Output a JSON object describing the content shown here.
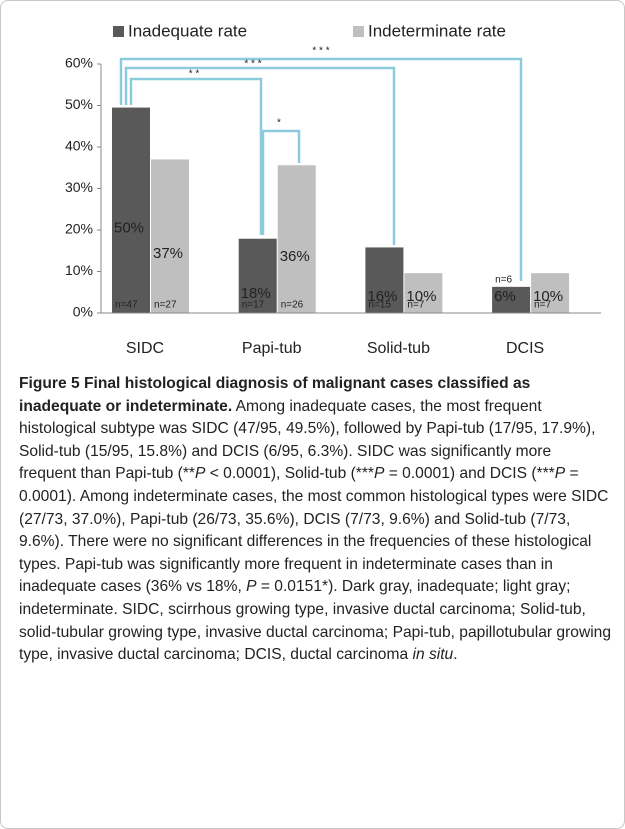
{
  "chart_data": {
    "type": "bar",
    "categories": [
      "SIDC",
      "Papi-tub",
      "Solid-tub",
      "DCIS"
    ],
    "series": [
      {
        "name": "Inadequate rate",
        "color": "#595959",
        "values": [
          49.5,
          17.9,
          15.8,
          6.3
        ],
        "value_labels": [
          "50%",
          "18%",
          "16%",
          "6%"
        ],
        "n_labels": [
          "n=47",
          "n=17",
          "n=15",
          "n=6"
        ]
      },
      {
        "name": "Indeterminate rate",
        "color": "#bfbfbf",
        "values": [
          37.0,
          35.6,
          9.6,
          9.6
        ],
        "value_labels": [
          "37%",
          "36%",
          "10%",
          "10%"
        ],
        "n_labels": [
          "n=27",
          "n=26",
          "n=7",
          "n=7"
        ]
      }
    ],
    "ylim": [
      0,
      60
    ],
    "yticks": [
      {
        "value": 0,
        "label": "0%"
      },
      {
        "value": 10,
        "label": "10%"
      },
      {
        "value": 20,
        "label": "20%"
      },
      {
        "value": 30,
        "label": "30%"
      },
      {
        "value": 40,
        "label": "40%"
      },
      {
        "value": 50,
        "label": "50%"
      },
      {
        "value": 60,
        "label": "60%"
      }
    ],
    "grid": false,
    "legend": "top",
    "annotations": [
      "* * *",
      "* * *",
      "* *",
      "*"
    ]
  },
  "caption": {
    "label": "Figure 5",
    "title": "Final histological diagnosis of malignant cases classified as inadequate or indeterminate.",
    "body": [
      {
        "text": "Among inadequate cases, the most frequent histological subtype was SIDC (47/95, 49.5%), followed by Papi-tub (17/95, 17.9%), Solid-tub (15/95, 15.8%) and DCIS (6/95, 6.3%). SIDC was significantly more frequent than Papi-tub (**",
        "italic": false
      },
      {
        "text": "P",
        "italic": true
      },
      {
        "text": " < 0.0001), Solid-tub (***",
        "italic": false
      },
      {
        "text": "P",
        "italic": true
      },
      {
        "text": " = 0.0001) and DCIS (***",
        "italic": false
      },
      {
        "text": "P",
        "italic": true
      },
      {
        "text": " = 0.0001). Among indeterminate cases, the most common histological types were SIDC (27/73, 37.0%), Papi-tub (26/73, 35.6%), DCIS (7/73, 9.6%) and Solid-tub (7/73, 9.6%). There were no significant differences in the frequencies of these histological types. Papi-tub was significantly more frequent in indeterminate cases than in inadequate cases (36% vs 18%, ",
        "italic": false
      },
      {
        "text": "P",
        "italic": true
      },
      {
        "text": " = 0.0151*).  Dark gray, inadequate; light gray; indeterminate. SIDC, scirrhous growing type, invasive ductal carcinoma; Solid-tub, solid-tubular growing type, invasive ductal carcinoma; Papi-tub, papillotubular growing type, invasive ductal carcinoma; DCIS, ductal carcinoma ",
        "italic": false
      },
      {
        "text": "in situ",
        "italic": true
      },
      {
        "text": ".",
        "italic": false
      }
    ]
  }
}
